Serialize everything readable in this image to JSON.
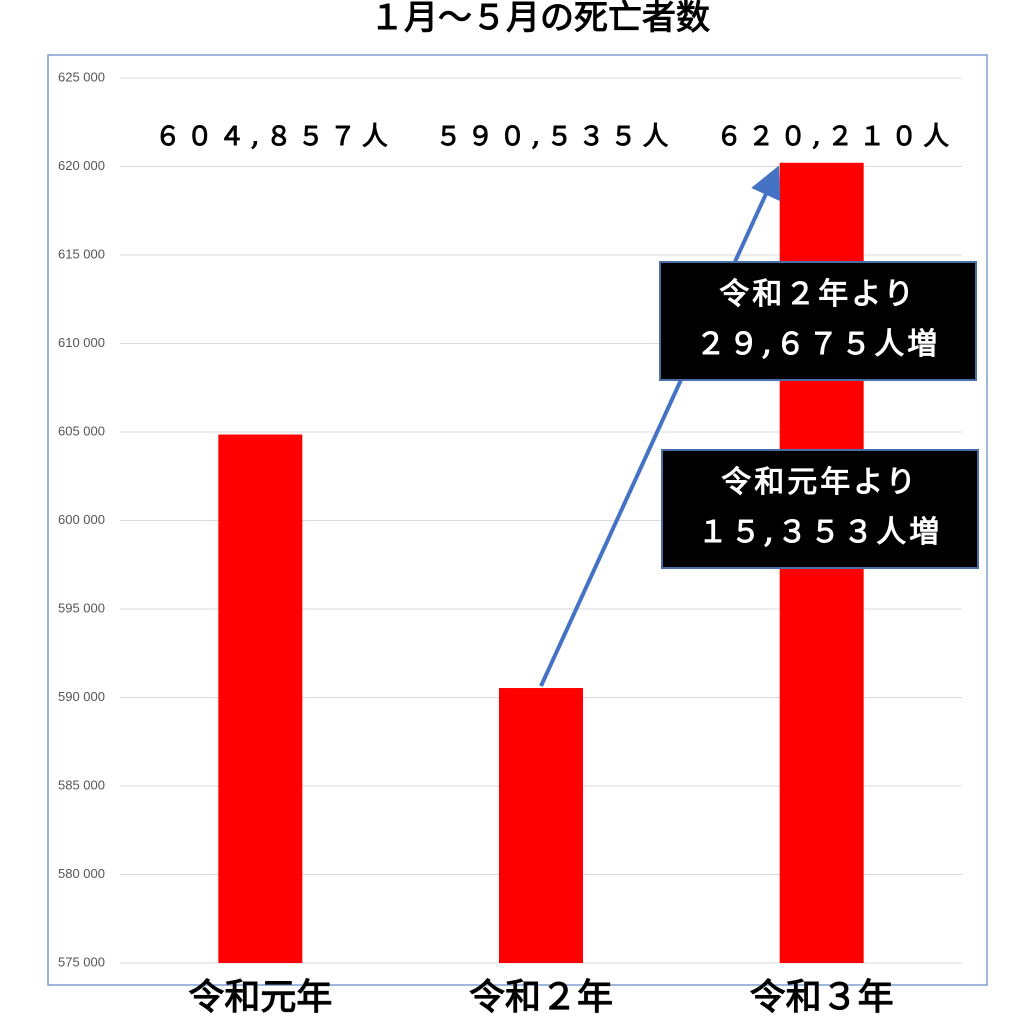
{
  "chart_data": {
    "type": "bar",
    "title": "１月～５月の死亡者数",
    "categories": [
      "令和元年",
      "令和２年",
      "令和３年"
    ],
    "values": [
      604857,
      590535,
      620210
    ],
    "value_labels": [
      "６０４,８５７人",
      "５９０,５３５人",
      "６２０,２１０人"
    ],
    "color": "#ff0000",
    "ylim": [
      575000,
      625000
    ],
    "yticks": [
      {
        "value": 575000,
        "label": "575 000"
      },
      {
        "value": 580000,
        "label": "580 000"
      },
      {
        "value": 585000,
        "label": "585 000"
      },
      {
        "value": 590000,
        "label": "590 000"
      },
      {
        "value": 595000,
        "label": "595 000"
      },
      {
        "value": 600000,
        "label": "600 000"
      },
      {
        "value": 605000,
        "label": "605 000"
      },
      {
        "value": 610000,
        "label": "610 000"
      },
      {
        "value": 615000,
        "label": "615 000"
      },
      {
        "value": 620000,
        "label": "620 000"
      },
      {
        "value": 625000,
        "label": "625 000"
      }
    ],
    "grid": true,
    "annotations": [
      [
        "令和２年より",
        "２９,６７５人増"
      ],
      [
        "令和元年より",
        "１５,３５３人増"
      ]
    ]
  }
}
